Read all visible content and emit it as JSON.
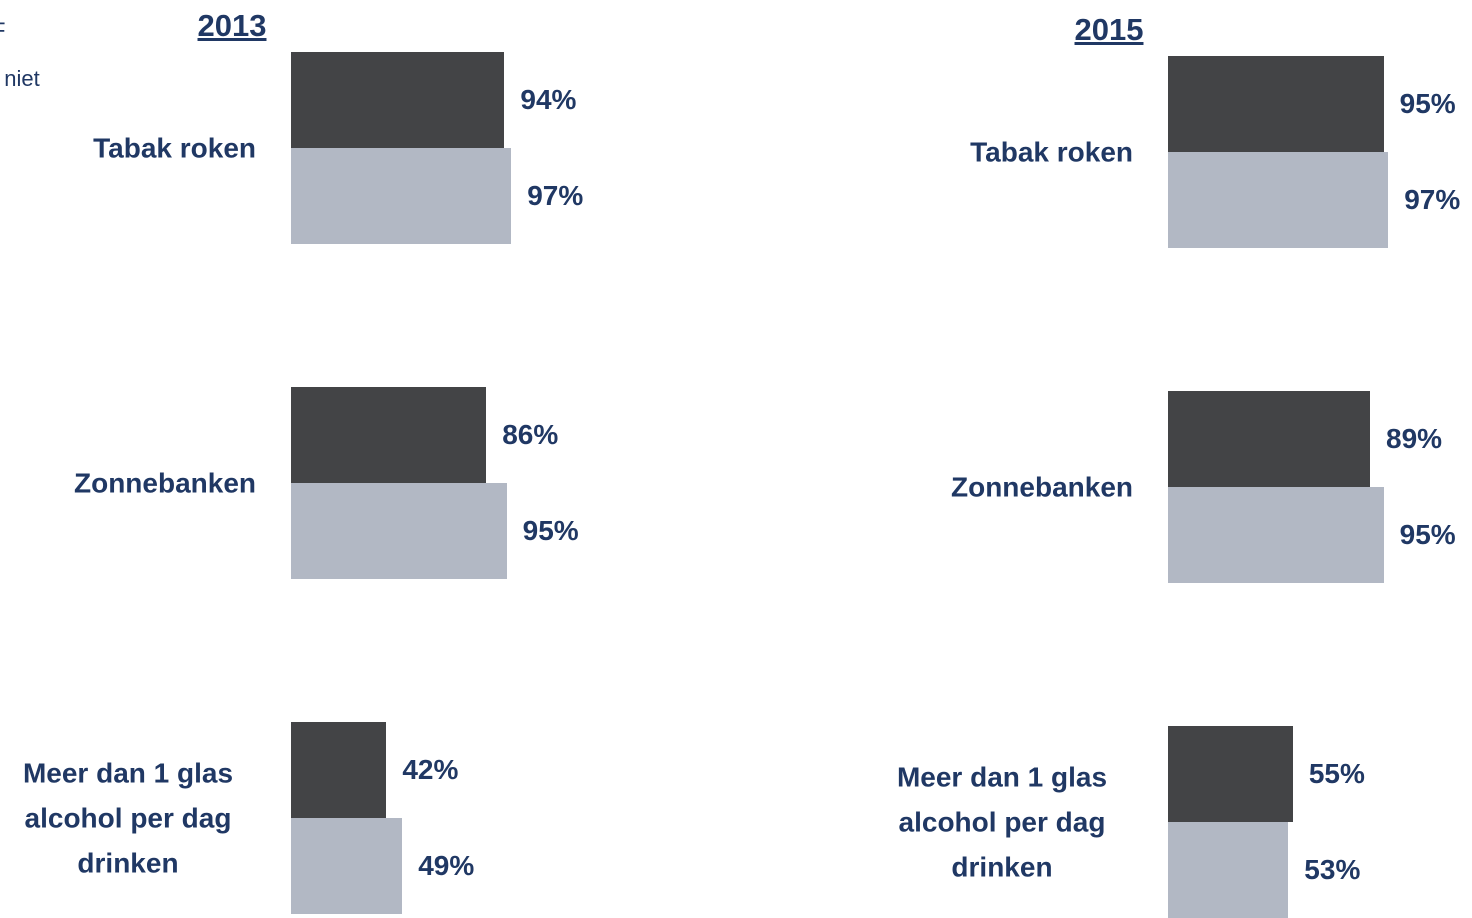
{
  "annotations": [
    "F",
    "t niet"
  ],
  "chart_data": [
    {
      "type": "bar",
      "orientation": "horizontal",
      "title": "2013",
      "categories": [
        "Tabak roken",
        "Zonnebanken",
        "Meer dan 1 glas alcohol per dag drinken"
      ],
      "xlim": [
        0,
        100
      ],
      "series": [
        {
          "color": "#434446",
          "values": [
            94,
            86,
            42
          ],
          "value_labels": [
            "94%",
            "86%",
            "42%"
          ]
        },
        {
          "color": "#b2b8c4",
          "values": [
            97,
            95,
            49
          ],
          "value_labels": [
            "97%",
            "95%",
            "49%"
          ]
        }
      ]
    },
    {
      "type": "bar",
      "orientation": "horizontal",
      "title": "2015",
      "categories": [
        "Tabak roken",
        "Zonnebanken",
        "Meer dan 1 glas alcohol per dag drinken"
      ],
      "xlim": [
        0,
        100
      ],
      "series": [
        {
          "color": "#434446",
          "values": [
            95,
            89,
            55
          ],
          "value_labels": [
            "95%",
            "89%",
            "55%"
          ]
        },
        {
          "color": "#b2b8c4",
          "values": [
            97,
            95,
            53
          ],
          "value_labels": [
            "97%",
            "95%",
            "53%"
          ]
        }
      ]
    }
  ]
}
